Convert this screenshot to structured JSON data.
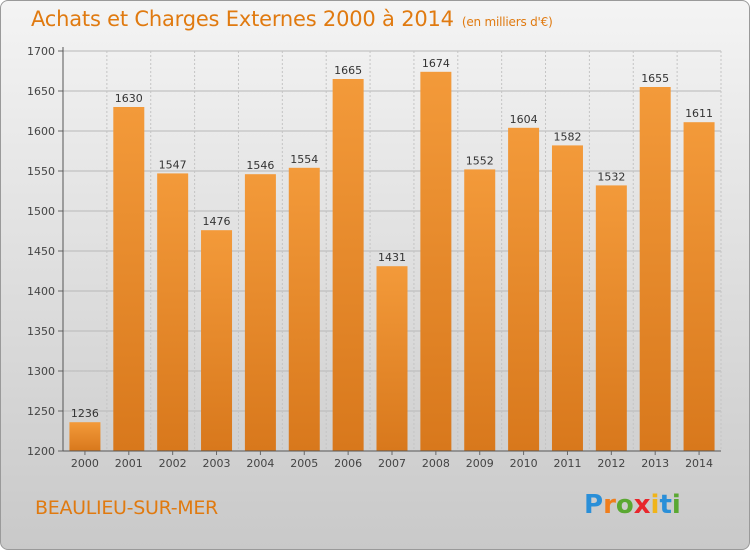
{
  "chart_data": {
    "type": "bar",
    "title": "Achats et Charges Externes 2000 à 2014",
    "subtitle": "(en milliers d'€)",
    "categories": [
      "2000",
      "2001",
      "2002",
      "2003",
      "2004",
      "2005",
      "2006",
      "2007",
      "2008",
      "2009",
      "2010",
      "2011",
      "2012",
      "2013",
      "2014"
    ],
    "values": [
      1236,
      1630,
      1547,
      1476,
      1546,
      1554,
      1665,
      1431,
      1674,
      1552,
      1604,
      1582,
      1532,
      1655,
      1611
    ],
    "ylim": [
      1200,
      1700
    ],
    "yticks": [
      1200,
      1250,
      1300,
      1350,
      1400,
      1450,
      1500,
      1550,
      1600,
      1650,
      1700
    ],
    "xlabel": "",
    "ylabel": "",
    "grid": true,
    "bar_color": "#f39a3a",
    "bar_color_dark": "#d8781c"
  },
  "footer": {
    "commune": "BEAULIEU-SUR-MER",
    "logo_letters": [
      "P",
      "r",
      "o",
      "x",
      "i",
      "t",
      "i"
    ],
    "logo_colors": [
      "#2a8fd8",
      "#f07e1c",
      "#5aa832",
      "#e8262c",
      "#f0b419",
      "#2a8fd8",
      "#5aa832"
    ]
  },
  "colors": {
    "title": "#e07a10"
  }
}
